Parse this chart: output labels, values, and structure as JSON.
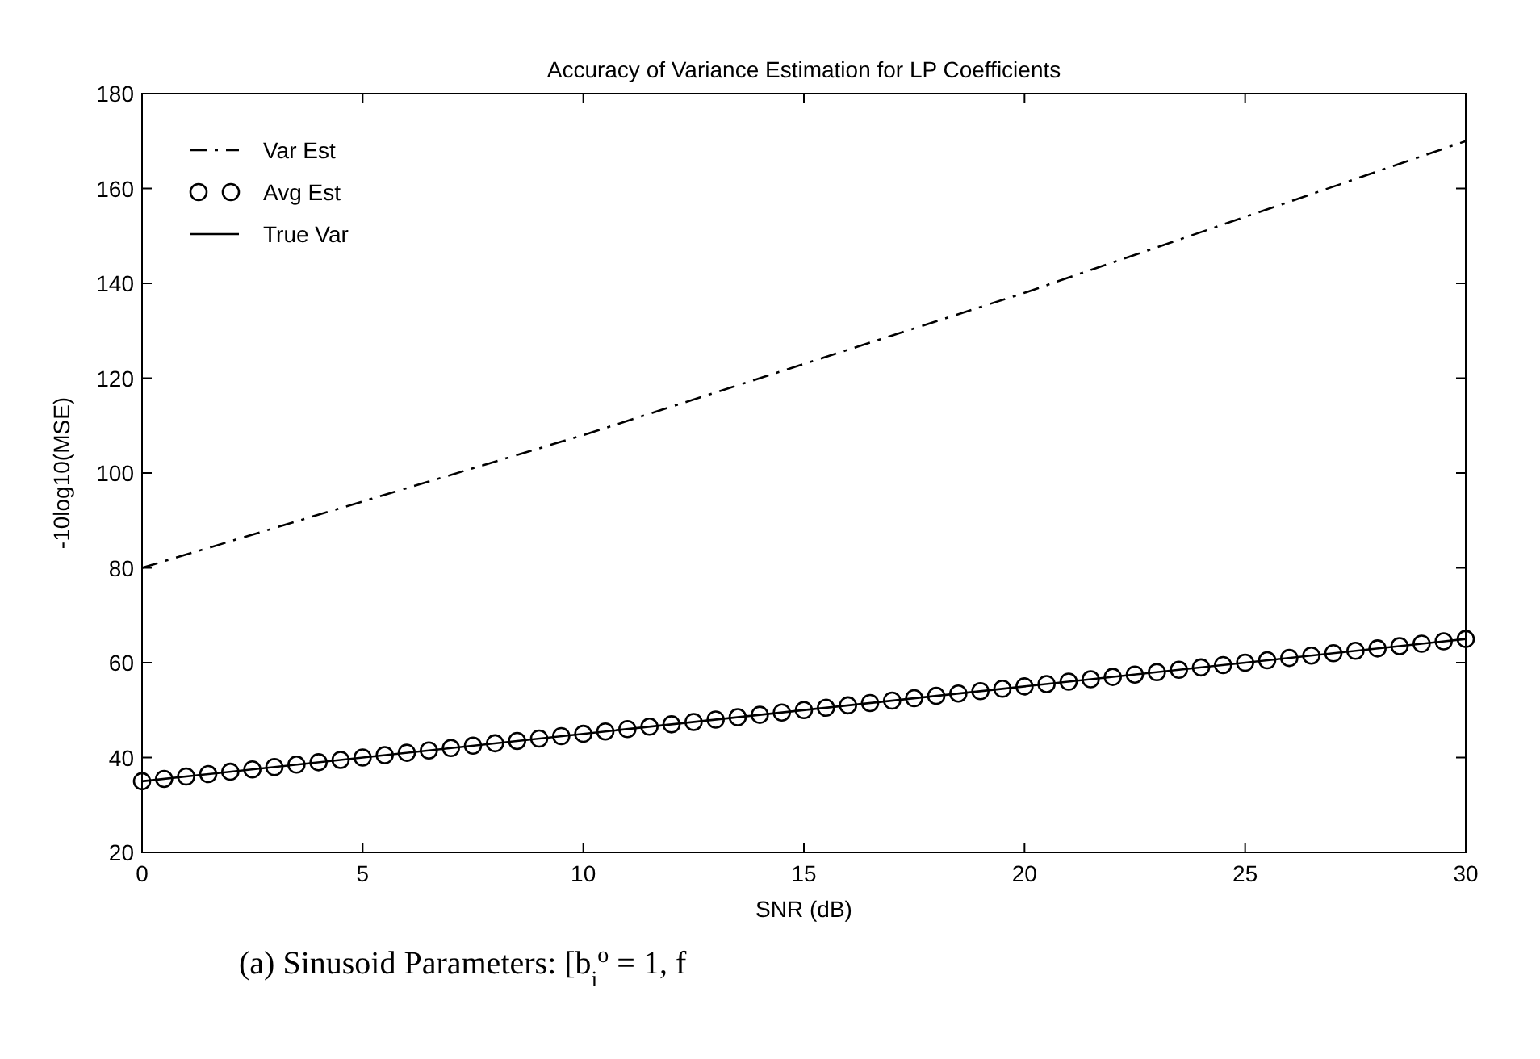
{
  "chart_data": {
    "type": "line",
    "title": "Accuracy of Variance Estimation for LP Coefficients",
    "xlabel": "SNR (dB)",
    "ylabel": "-10log10(MSE)",
    "annotations": [
      "(a) Sinusoid Parameters: [b$_{i}$$^{o}$ = 1, f"
    ],
    "xlim": [
      0,
      30
    ],
    "ylim": [
      20,
      180
    ],
    "xticks": [
      0,
      5,
      10,
      15,
      20,
      25,
      30
    ],
    "yticks": [
      20,
      40,
      60,
      80,
      100,
      120,
      140,
      160,
      180
    ],
    "grid": false,
    "legend": "top left",
    "series": [
      {
        "name": "Var Est",
        "line_style": "dashed",
        "color": "#000000",
        "x": [
          0,
          5,
          10,
          15,
          20,
          25,
          30
        ],
        "values": [
          80,
          94,
          108,
          123,
          138,
          154,
          170
        ]
      },
      {
        "name": "Avg Est",
        "type": "scatter",
        "marker": "circle",
        "color": "#000000",
        "x": [
          0,
          0.5,
          1,
          1.5,
          2,
          2.5,
          3,
          3.5,
          4,
          4.5,
          5,
          5.5,
          6,
          6.5,
          7,
          7.5,
          8,
          8.5,
          9,
          9.5,
          10,
          10.5,
          11,
          11.5,
          12,
          12.5,
          13,
          13.5,
          14,
          14.5,
          15,
          15.5,
          16,
          16.5,
          17,
          17.5,
          18,
          18.5,
          19,
          19.5,
          20,
          20.5,
          21,
          21.5,
          22,
          22.5,
          23,
          23.5,
          24,
          24.5,
          25,
          25.5,
          26,
          26.5,
          27,
          27.5,
          28,
          28.5,
          29,
          29.5,
          30
        ],
        "values": [
          35,
          35.5,
          36,
          36.5,
          37,
          37.5,
          38,
          38.5,
          39,
          39.5,
          40,
          40.5,
          41,
          41.5,
          42,
          42.5,
          43,
          43.5,
          44,
          44.5,
          45,
          45.5,
          46,
          46.5,
          47,
          47.5,
          48,
          48.5,
          49,
          49.5,
          50,
          50.5,
          51,
          51.5,
          52,
          52.5,
          53,
          53.5,
          54,
          54.5,
          55,
          55.5,
          56,
          56.5,
          57,
          57.5,
          58,
          58.5,
          59,
          59.5,
          60,
          60.5,
          61,
          61.5,
          62,
          62.5,
          63,
          63.5,
          64,
          64.5,
          65
        ]
      },
      {
        "name": "True Var",
        "line_style": "solid",
        "color": "#000000",
        "x": [
          0,
          30
        ],
        "values": [
          35,
          65
        ]
      }
    ]
  }
}
